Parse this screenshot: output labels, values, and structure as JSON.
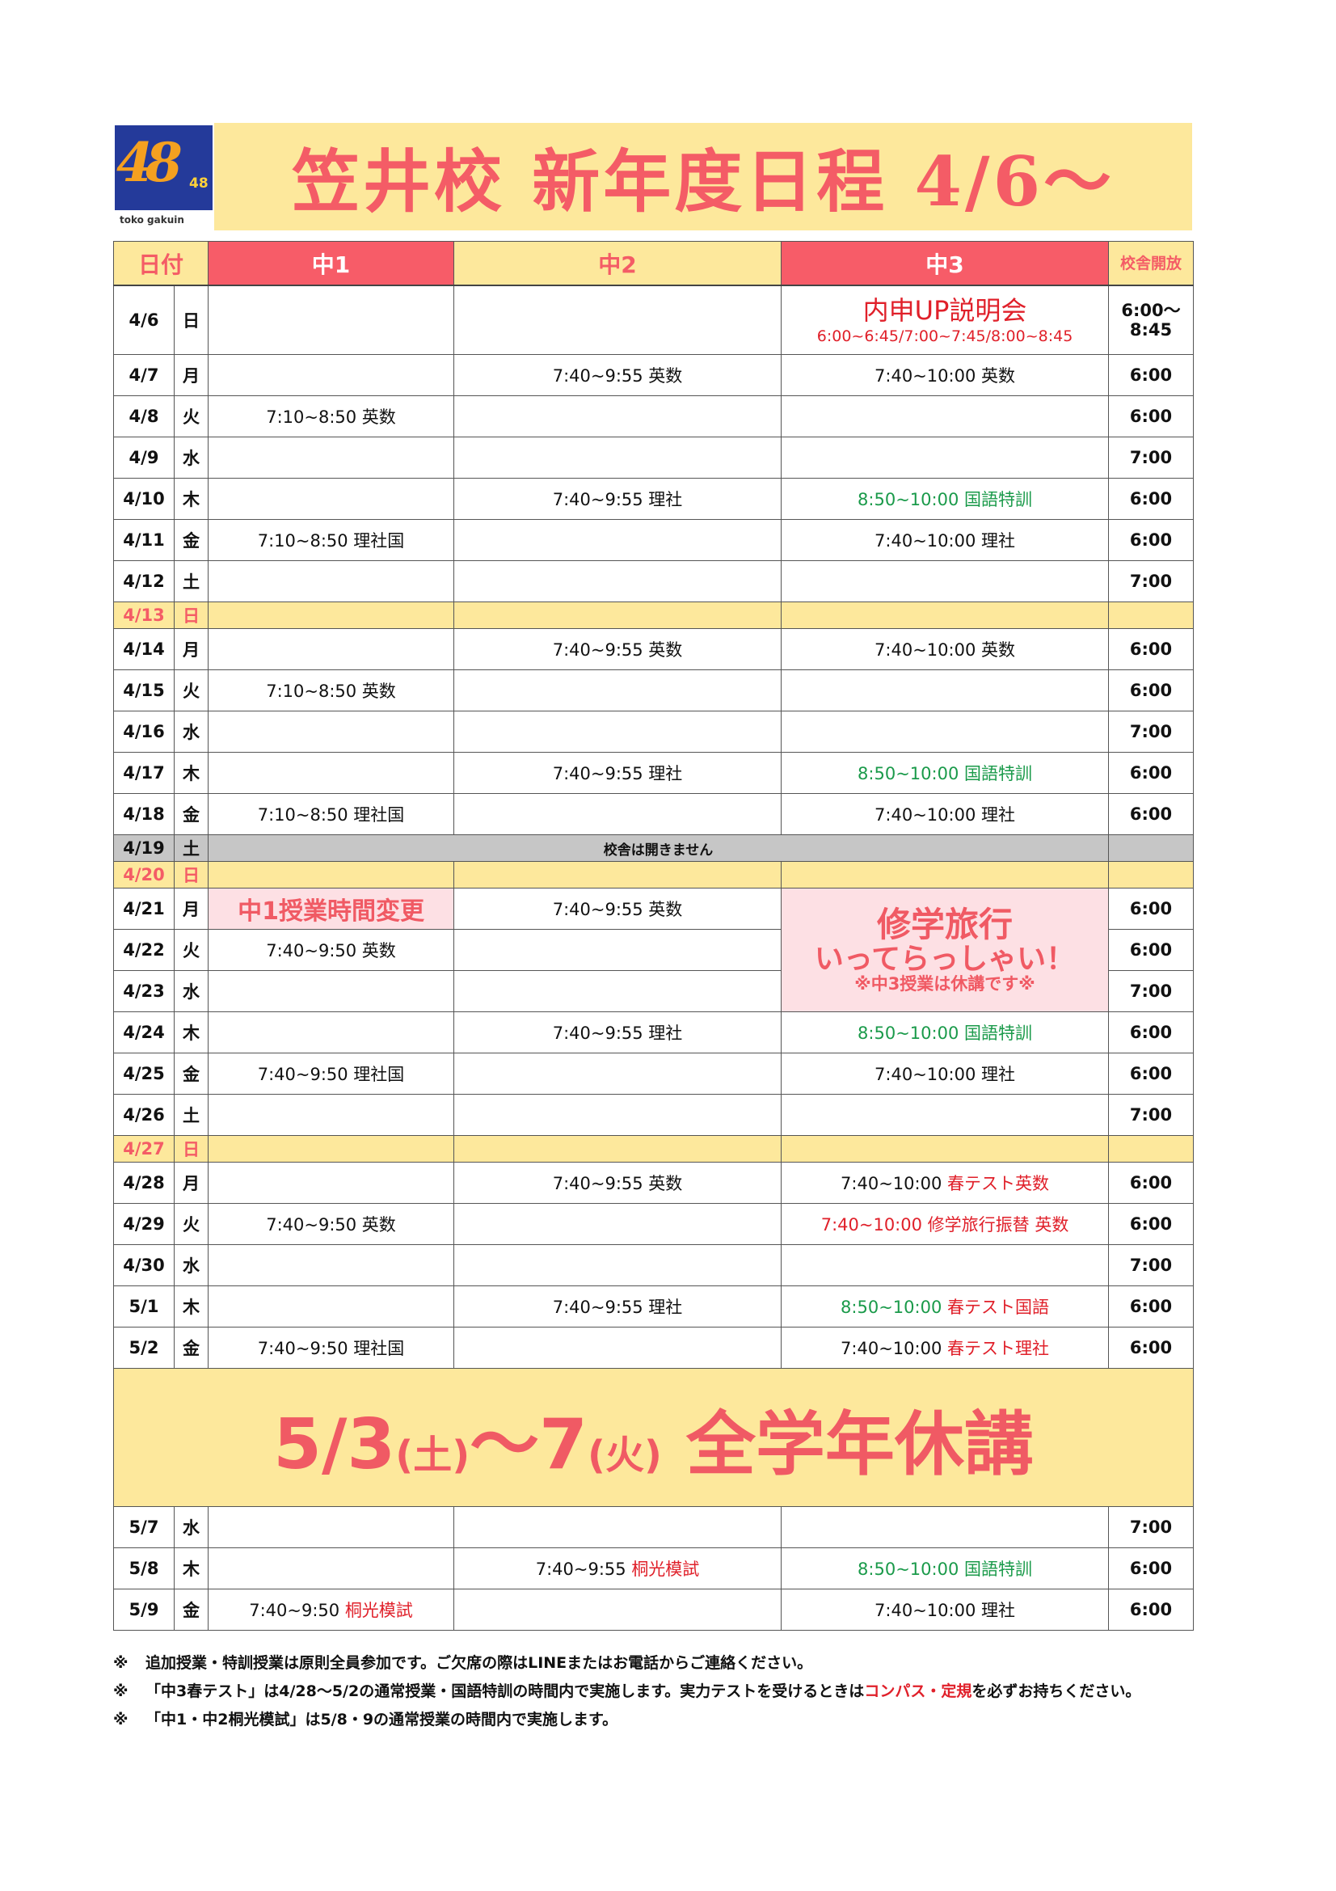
{
  "logo": {
    "number": "48",
    "brand": "toko gakuin"
  },
  "title": "笠井校 新年度日程 4/6～",
  "header": {
    "date": "日付",
    "g1": "中1",
    "g2": "中2",
    "g3": "中3",
    "open": "校舎開放"
  },
  "colors": {
    "accent": "#f45c66",
    "yellow": "#fde89c",
    "red_text": "#e0202a",
    "green_text": "#1a9a4a",
    "pink": "#fde0e4",
    "closed_gray": "#c6c6c6"
  },
  "first_row": {
    "date": "4/6",
    "day": "日",
    "event": "内申UP説明会",
    "event_times": "6:00~6:45/7:00~7:45/8:00~8:45",
    "open": "6:00～ 8:45"
  },
  "rows_a": [
    {
      "t": "n",
      "date": "4/7",
      "day": "月",
      "g1": [],
      "g2": [
        [
          "7:40~9:55 英数",
          ""
        ]
      ],
      "g3": [
        [
          "7:40~10:00 英数",
          ""
        ]
      ],
      "open": "6:00"
    },
    {
      "t": "n",
      "date": "4/8",
      "day": "火",
      "g1": [
        [
          "7:10~8:50 英数",
          ""
        ]
      ],
      "g2": [],
      "g3": [],
      "open": "6:00"
    },
    {
      "t": "n",
      "date": "4/9",
      "day": "水",
      "g1": [],
      "g2": [],
      "g3": [],
      "open": "7:00"
    },
    {
      "t": "n",
      "date": "4/10",
      "day": "木",
      "g1": [],
      "g2": [
        [
          "7:40~9:55 理社",
          ""
        ]
      ],
      "g3": [
        [
          "8:50~10:00 国語特訓",
          "green"
        ]
      ],
      "open": "6:00"
    },
    {
      "t": "n",
      "date": "4/11",
      "day": "金",
      "g1": [
        [
          "7:10~8:50 理社国",
          ""
        ]
      ],
      "g2": [],
      "g3": [
        [
          "7:40~10:00 理社",
          ""
        ]
      ],
      "open": "6:00"
    },
    {
      "t": "n",
      "date": "4/12",
      "day": "土",
      "g1": [],
      "g2": [],
      "g3": [],
      "open": "7:00"
    },
    {
      "t": "s",
      "date": "4/13",
      "day": "日",
      "g1": [],
      "g2": [],
      "g3": [],
      "open": ""
    },
    {
      "t": "n",
      "date": "4/14",
      "day": "月",
      "g1": [],
      "g2": [
        [
          "7:40~9:55 英数",
          ""
        ]
      ],
      "g3": [
        [
          "7:40~10:00 英数",
          ""
        ]
      ],
      "open": "6:00"
    },
    {
      "t": "n",
      "date": "4/15",
      "day": "火",
      "g1": [
        [
          "7:10~8:50 英数",
          ""
        ]
      ],
      "g2": [],
      "g3": [],
      "open": "6:00"
    },
    {
      "t": "n",
      "date": "4/16",
      "day": "水",
      "g1": [],
      "g2": [],
      "g3": [],
      "open": "7:00"
    },
    {
      "t": "n",
      "date": "4/17",
      "day": "木",
      "g1": [],
      "g2": [
        [
          "7:40~9:55 理社",
          ""
        ]
      ],
      "g3": [
        [
          "8:50~10:00 国語特訓",
          "green"
        ]
      ],
      "open": "6:00"
    },
    {
      "t": "n",
      "date": "4/18",
      "day": "金",
      "g1": [
        [
          "7:10~8:50 理社国",
          ""
        ]
      ],
      "g2": [],
      "g3": [
        [
          "7:40~10:00 理社",
          ""
        ]
      ],
      "open": "6:00"
    },
    {
      "t": "g",
      "date": "4/19",
      "day": "土",
      "closed": "校舎は開きません",
      "open": ""
    },
    {
      "t": "s",
      "date": "4/20",
      "day": "日",
      "g1": [],
      "g2": [],
      "g3": [],
      "open": ""
    }
  ],
  "trip_rows": {
    "g1_notice": "中1授業時間変更",
    "g3_trip": {
      "line1": "修学旅行",
      "line2": "いってらっしゃい！",
      "line3": "※中3授業は休講です※"
    },
    "rows": [
      {
        "date": "4/21",
        "day": "月",
        "g2": [
          [
            "7:40~9:55 英数",
            ""
          ]
        ],
        "open": "6:00"
      },
      {
        "date": "4/22",
        "day": "火",
        "g1": [
          [
            "7:40~9:50 英数",
            ""
          ]
        ],
        "g2": [],
        "open": "6:00"
      },
      {
        "date": "4/23",
        "day": "水",
        "g1": [],
        "g2": [],
        "open": "7:00"
      }
    ]
  },
  "rows_b": [
    {
      "t": "n",
      "date": "4/24",
      "day": "木",
      "g1": [],
      "g2": [
        [
          "7:40~9:55 理社",
          ""
        ]
      ],
      "g3": [
        [
          "8:50~10:00 国語特訓",
          "green"
        ]
      ],
      "open": "6:00"
    },
    {
      "t": "n",
      "date": "4/25",
      "day": "金",
      "g1": [
        [
          "7:40~9:50 理社国",
          ""
        ]
      ],
      "g2": [],
      "g3": [
        [
          "7:40~10:00 理社",
          ""
        ]
      ],
      "open": "6:00"
    },
    {
      "t": "n",
      "date": "4/26",
      "day": "土",
      "g1": [],
      "g2": [],
      "g3": [],
      "open": "7:00"
    },
    {
      "t": "s",
      "date": "4/27",
      "day": "日",
      "g1": [],
      "g2": [],
      "g3": [],
      "open": ""
    },
    {
      "t": "n",
      "date": "4/28",
      "day": "月",
      "g1": [],
      "g2": [
        [
          "7:40~9:55 英数",
          ""
        ]
      ],
      "g3": [
        [
          "7:40~10:00 ",
          ""
        ],
        [
          "春テスト英数",
          "red"
        ]
      ],
      "open": "6:00"
    },
    {
      "t": "n",
      "date": "4/29",
      "day": "火",
      "g1": [
        [
          "7:40~9:50 英数",
          ""
        ]
      ],
      "g2": [],
      "g3": [
        [
          "7:40~10:00 修学旅行振替 英数",
          "red"
        ]
      ],
      "open": "6:00"
    },
    {
      "t": "n",
      "date": "4/30",
      "day": "水",
      "g1": [],
      "g2": [],
      "g3": [],
      "open": "7:00"
    },
    {
      "t": "n",
      "date": "5/1",
      "day": "木",
      "g1": [],
      "g2": [
        [
          "7:40~9:55 理社",
          ""
        ]
      ],
      "g3": [
        [
          "8:50~10:00 ",
          "green"
        ],
        [
          "春テスト国語",
          "red"
        ]
      ],
      "open": "6:00"
    },
    {
      "t": "n",
      "date": "5/2",
      "day": "金",
      "g1": [
        [
          "7:40~9:50 理社国",
          ""
        ]
      ],
      "g2": [],
      "g3": [
        [
          "7:40~10:00 ",
          ""
        ],
        [
          "春テスト理社",
          "red"
        ]
      ],
      "open": "6:00"
    }
  ],
  "banner": {
    "a": "5/3",
    "b": "(土)",
    "c": "～7",
    "d": "(火)",
    "e": " 全学年休講"
  },
  "rows_c": [
    {
      "t": "n",
      "date": "5/7",
      "day": "水",
      "g1": [],
      "g2": [],
      "g3": [],
      "open": "7:00"
    },
    {
      "t": "n",
      "date": "5/8",
      "day": "木",
      "g1": [],
      "g2": [
        [
          "7:40~9:55 ",
          ""
        ],
        [
          "桐光模試",
          "red"
        ]
      ],
      "g3": [
        [
          "8:50~10:00 国語特訓",
          "green"
        ]
      ],
      "open": "6:00"
    },
    {
      "t": "n",
      "date": "5/9",
      "day": "金",
      "g1": [
        [
          "7:40~9:50 ",
          ""
        ],
        [
          "桐光模試",
          "red"
        ]
      ],
      "g2": [],
      "g3": [
        [
          "7:40~10:00 理社",
          ""
        ]
      ],
      "open": "6:00"
    }
  ],
  "notes": {
    "mark": "※",
    "n1": "追加授業・特訓授業は原則全員参加です。ご欠席の際はLINEまたはお電話からご連絡ください。",
    "n2a": "「中3春テスト」は4/28～5/2の通常授業・国語特訓の時間内で実施します。実力テストを受けるときは",
    "n2b": "コンパス・定規",
    "n2c": "を必ずお持ちください。",
    "n3": "「中1・中2桐光模試」は5/8・9の通常授業の時間内で実施します。"
  }
}
